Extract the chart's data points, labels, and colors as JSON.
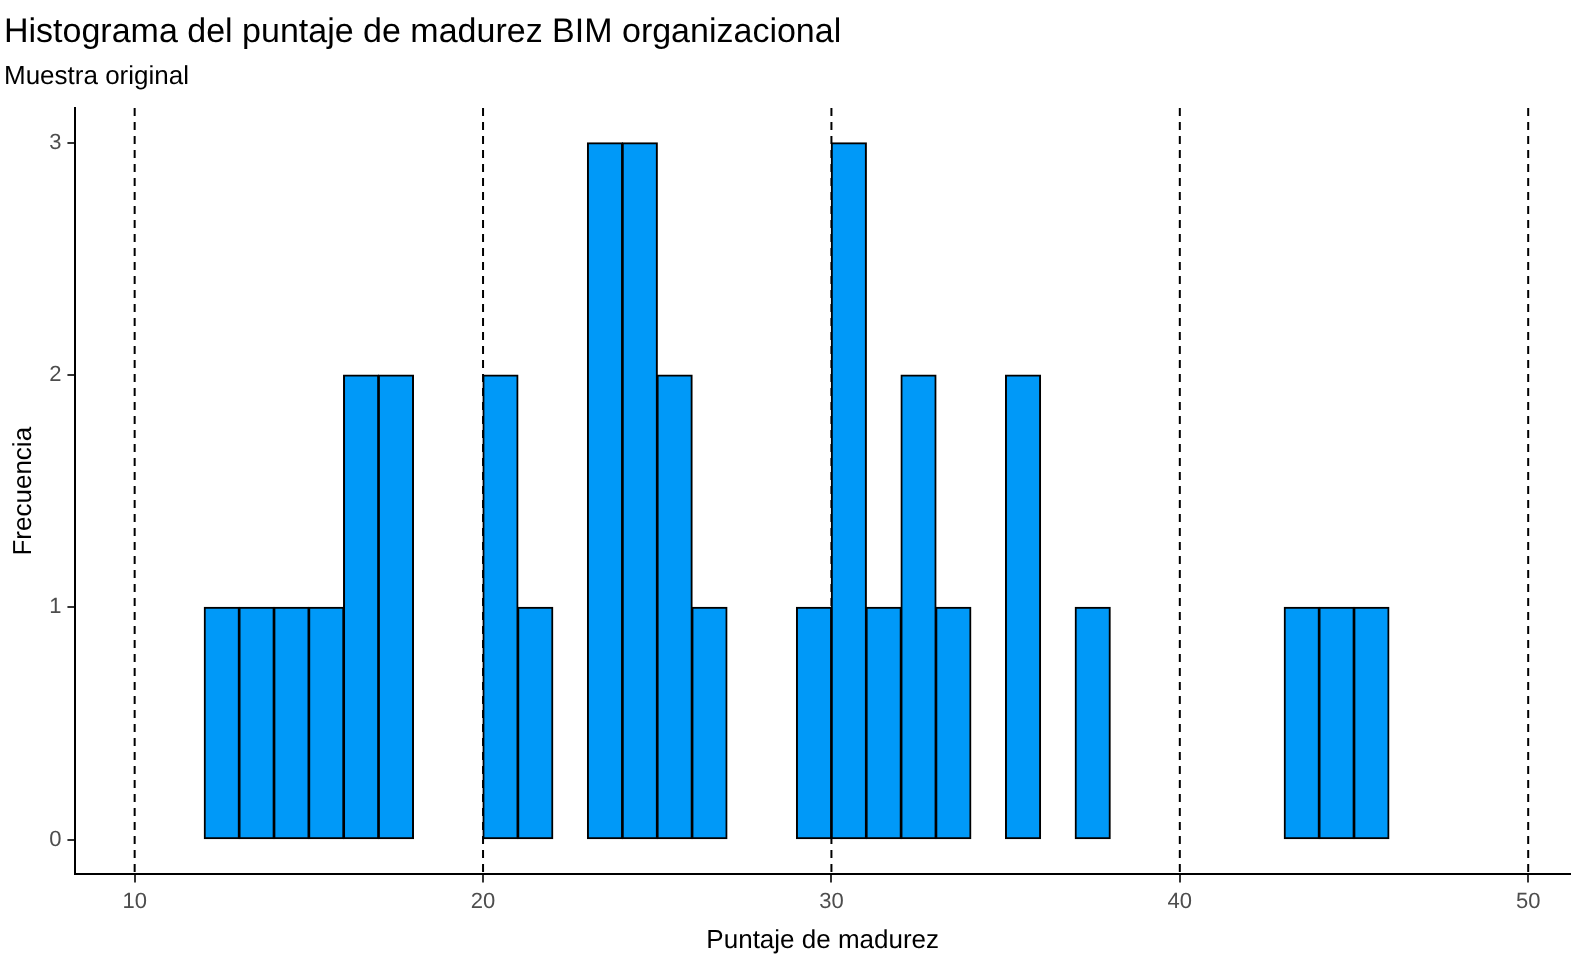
{
  "chart_data": {
    "type": "histogram",
    "title": "Histograma del puntaje de madurez BIM organizacional",
    "subtitle": "Muestra original",
    "xlabel": "Puntaje de madurez",
    "ylabel": "Frecuencia",
    "bins": [
      10,
      11,
      12,
      13,
      14,
      15,
      16,
      17,
      18,
      19,
      20,
      21,
      22,
      23,
      24,
      25,
      26,
      27,
      28,
      29,
      30,
      31,
      32,
      33,
      34,
      35,
      36,
      37,
      38,
      39,
      40,
      41,
      42,
      43,
      44,
      45,
      46,
      47,
      48,
      49,
      50
    ],
    "values": [
      0,
      0,
      1,
      1,
      1,
      1,
      2,
      2,
      0,
      0,
      2,
      1,
      0,
      3,
      3,
      2,
      1,
      0,
      0,
      1,
      3,
      1,
      2,
      1,
      0,
      2,
      0,
      1,
      0,
      0,
      0,
      0,
      0,
      1,
      1,
      1,
      0,
      0,
      0,
      0
    ],
    "color": "#0099f8",
    "xlim": [
      8.3,
      51.2
    ],
    "xticks": [
      10,
      20,
      30,
      40,
      50
    ],
    "ylim": [
      -0.15,
      3.15
    ],
    "yticks": [
      0,
      1,
      2,
      3
    ],
    "ref_lines": [
      {
        "axis": "x",
        "value": 10,
        "line_style": "dashed",
        "color": "#000000"
      },
      {
        "axis": "x",
        "value": 20,
        "line_style": "dashed",
        "color": "#000000"
      },
      {
        "axis": "x",
        "value": 30,
        "line_style": "dashed",
        "color": "#000000"
      },
      {
        "axis": "x",
        "value": 40,
        "line_style": "dashed",
        "color": "#000000"
      },
      {
        "axis": "x",
        "value": 50,
        "line_style": "dashed",
        "color": "#000000"
      }
    ]
  }
}
